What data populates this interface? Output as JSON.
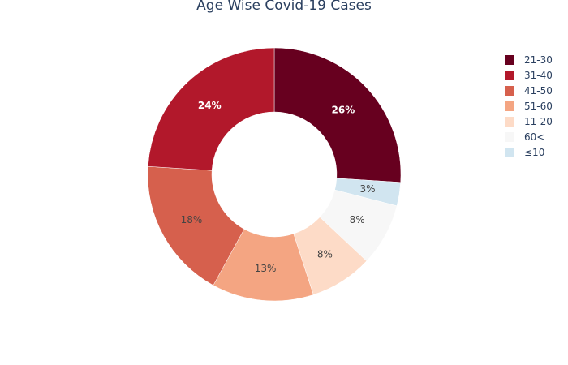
{
  "chart_data": {
    "type": "pie",
    "hole": true,
    "title": "Age Wise Covid-19 Cases",
    "slices": [
      {
        "label": "21-30",
        "percent": 26,
        "text": "26%",
        "color": "#67001f",
        "text_color": "#ffffff"
      },
      {
        "label": "≤10",
        "percent": 3,
        "text": "3%",
        "color": "#d1e5f0",
        "text_color": "#444444"
      },
      {
        "label": "60<",
        "percent": 8,
        "text": "8%",
        "color": "#f7f7f7",
        "text_color": "#444444"
      },
      {
        "label": "11-20",
        "percent": 8,
        "text": "8%",
        "color": "#fddbc7",
        "text_color": "#444444"
      },
      {
        "label": "51-60",
        "percent": 13,
        "text": "13%",
        "color": "#f4a582",
        "text_color": "#444444"
      },
      {
        "label": "41-50",
        "percent": 18,
        "text": "18%",
        "color": "#d6604d",
        "text_color": "#444444"
      },
      {
        "label": "31-40",
        "percent": 24,
        "text": "24%",
        "color": "#b2182b",
        "text_color": "#ffffff"
      }
    ],
    "legend": [
      {
        "label": "21-30",
        "color": "#67001f"
      },
      {
        "label": "31-40",
        "color": "#b2182b"
      },
      {
        "label": "41-50",
        "color": "#d6604d"
      },
      {
        "label": "51-60",
        "color": "#f4a582"
      },
      {
        "label": "11-20",
        "color": "#fddbc7"
      },
      {
        "label": "60<",
        "color": "#f7f7f7"
      },
      {
        "label": "≤10",
        "color": "#d1e5f0"
      }
    ]
  }
}
